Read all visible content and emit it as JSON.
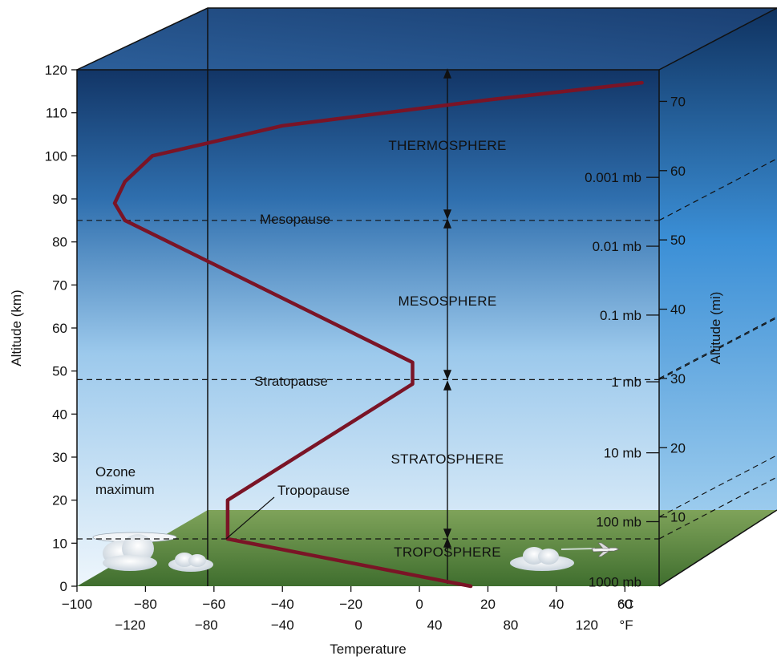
{
  "chart_data": {
    "type": "line",
    "ylabel_left": "Altitude (km)",
    "ylabel_right": "Altitude (mi)",
    "xlabel": "Temperature",
    "ylim_km": [
      0,
      120
    ],
    "xlim_c": [
      -100,
      70
    ],
    "y_ticks_km": [
      "0",
      "10",
      "20",
      "30",
      "40",
      "50",
      "60",
      "70",
      "80",
      "90",
      "100",
      "110",
      "120"
    ],
    "y_ticks_mi": [
      "10",
      "20",
      "30",
      "40",
      "50",
      "60",
      "70"
    ],
    "x_ticks_c": [
      "−100",
      "−80",
      "−60",
      "−40",
      "−20",
      "0",
      "20",
      "40",
      "60"
    ],
    "x_ticks_f": [
      "−120",
      "−80",
      "−40",
      "0",
      "40",
      "80",
      "120"
    ],
    "unit_c": "°C",
    "unit_f": "°F",
    "temperature_profile": [
      {
        "temp_c": 15,
        "alt_km": 0
      },
      {
        "temp_c": -56,
        "alt_km": 11
      },
      {
        "temp_c": -56,
        "alt_km": 20
      },
      {
        "temp_c": -2,
        "alt_km": 47
      },
      {
        "temp_c": -2,
        "alt_km": 52
      },
      {
        "temp_c": -86,
        "alt_km": 85
      },
      {
        "temp_c": -89,
        "alt_km": 89
      },
      {
        "temp_c": -86,
        "alt_km": 94
      },
      {
        "temp_c": -78,
        "alt_km": 100
      },
      {
        "temp_c": -40,
        "alt_km": 107
      },
      {
        "temp_c": -10,
        "alt_km": 110
      },
      {
        "temp_c": 20,
        "alt_km": 113
      },
      {
        "temp_c": 65,
        "alt_km": 117
      }
    ],
    "layers": [
      "THERMOSPHERE",
      "MESOSPHERE",
      "STRATOSPHERE",
      "TROPOSPHERE"
    ],
    "boundaries": [
      {
        "label": "Mesopause",
        "alt_km": 85
      },
      {
        "label": "Stratopause",
        "alt_km": 48
      },
      {
        "label": "Tropopause",
        "alt_km": 11
      }
    ],
    "pressure_labels": [
      {
        "label": "0.001 mb",
        "alt_km": 95
      },
      {
        "label": "0.01 mb",
        "alt_km": 79
      },
      {
        "label": "0.1 mb",
        "alt_km": 63
      },
      {
        "label": "1 mb",
        "alt_km": 47.5
      },
      {
        "label": "10 mb",
        "alt_km": 31
      },
      {
        "label": "100 mb",
        "alt_km": 15
      },
      {
        "label": "1000 mb",
        "alt_km": 1
      }
    ],
    "annotations": {
      "ozone_line1": "Ozone",
      "ozone_line2": "maximum"
    },
    "colors": {
      "curve": "#7a1426",
      "sky_top": "#163a6e",
      "sky_bottom": "#e8f3fb",
      "ground": "#5f8a3c"
    }
  }
}
